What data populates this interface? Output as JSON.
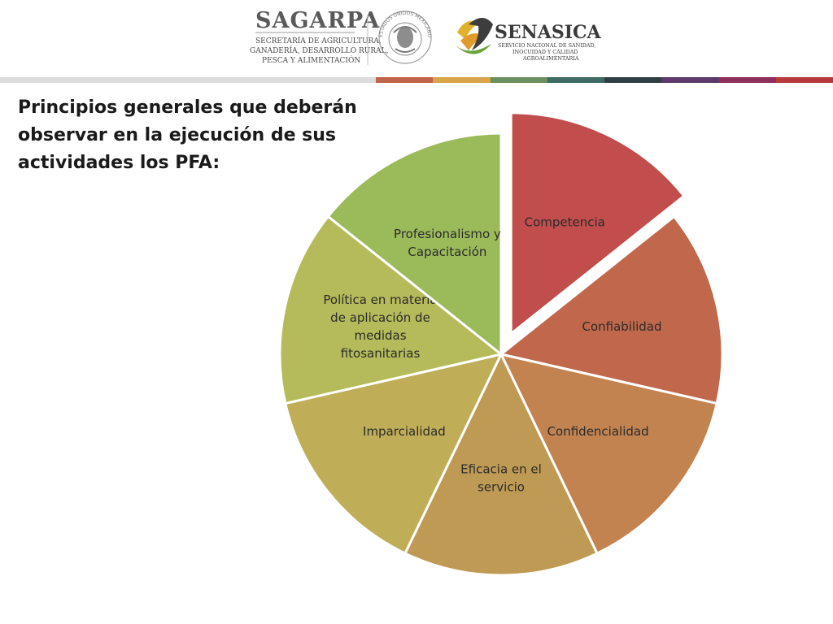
{
  "header": {
    "sagarpa": {
      "name": "SAGARPA",
      "subtitle_lines": [
        "SECRETARÍA DE AGRICULTURA,",
        "GANADERÍA, DESARROLLO RURAL,",
        "PESCA Y ALIMENTACIÓN"
      ]
    },
    "seal_text": "ESTADOS UNIDOS MEXICANOS",
    "senasica": {
      "name": "SENASICA",
      "subtitle_lines": [
        "SERVICIO NACIONAL DE SANIDAD,",
        "INOCUIDAD Y CALIDAD",
        "AGROALIMENTARIA"
      ]
    },
    "band_colors": [
      "#c0634a",
      "#d9a44a",
      "#6b8f5e",
      "#3f6b64",
      "#2f3f46",
      "#5d3a6b",
      "#8e2f5a",
      "#b73a3a"
    ]
  },
  "title": "Principios generales que deberán observar en la ejecución de sus actividades los PFA:",
  "chart_data": {
    "type": "pie",
    "start_angle_deg": 0,
    "exploded_index": 0,
    "slices": [
      {
        "label": [
          "Competencia"
        ],
        "value": 1,
        "color": "#c24d4d"
      },
      {
        "label": [
          "Confiabilidad"
        ],
        "value": 1,
        "color": "#c1684c"
      },
      {
        "label": [
          "Confidencialidad"
        ],
        "value": 1,
        "color": "#c28351"
      },
      {
        "label": [
          "Eficacia en el",
          "servicio"
        ],
        "value": 1,
        "color": "#bf9a55"
      },
      {
        "label": [
          "Imparcialidad"
        ],
        "value": 1,
        "color": "#c0ad57"
      },
      {
        "label": [
          "Política en materia",
          "de aplicación de",
          "medidas",
          "fitosanitarias"
        ],
        "value": 1,
        "color": "#b5bb5a"
      },
      {
        "label": [
          "Profesionalismo y",
          "Capacitación"
        ],
        "value": 1,
        "color": "#9bbb5a"
      }
    ]
  }
}
